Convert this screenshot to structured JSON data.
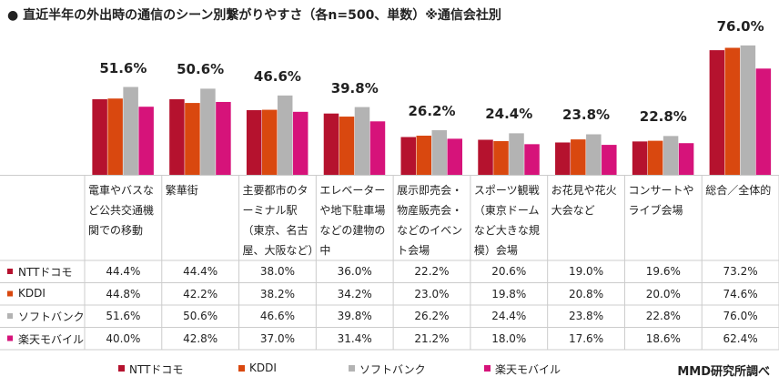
{
  "chart_data": {
    "type": "bar",
    "title": "●  直近半年の外出時の通信のシーン別繋がりやすさ（各n=500、単数）※通信会社別",
    "categories": [
      "電車やバスなど公共交通機関での移動",
      "繁華街",
      "主要都市のターミナル駅（東京、名古屋、大阪など）",
      "エレベーターや地下駐車場などの建物の中",
      "展示即売会・物産販売会・などのイベント会場",
      "スポーツ観戦（東京ドームなど大きな規模）会場",
      "お花見や花火大会など",
      "コンサートやライブ会場",
      "総合／全体的"
    ],
    "series": [
      {
        "name": "NTTドコモ",
        "color": "#b5122e",
        "values": [
          44.4,
          44.4,
          38.0,
          36.0,
          22.2,
          20.6,
          19.0,
          19.6,
          73.2
        ],
        "value_labels": [
          "44.4%",
          "44.4%",
          "38.0%",
          "36.0%",
          "22.2%",
          "20.6%",
          "19.0%",
          "19.6%",
          "73.2%"
        ]
      },
      {
        "name": "KDDI",
        "color": "#d9480f",
        "values": [
          44.8,
          42.2,
          38.2,
          34.2,
          23.0,
          19.8,
          20.8,
          20.0,
          74.6
        ],
        "value_labels": [
          "44.8%",
          "42.2%",
          "38.2%",
          "34.2%",
          "23.0%",
          "19.8%",
          "20.8%",
          "20.0%",
          "74.6%"
        ]
      },
      {
        "name": "ソフトバンク",
        "color": "#b3b3b3",
        "values": [
          51.6,
          50.6,
          46.6,
          39.8,
          26.2,
          24.4,
          23.8,
          22.8,
          76.0
        ],
        "value_labels": [
          "51.6%",
          "50.6%",
          "46.6%",
          "39.8%",
          "26.2%",
          "24.4%",
          "23.8%",
          "22.8%",
          "76.0%"
        ]
      },
      {
        "name": "楽天モバイル",
        "color": "#d6137a",
        "values": [
          40.0,
          42.8,
          37.0,
          31.4,
          21.2,
          18.0,
          17.6,
          18.6,
          62.4
        ],
        "value_labels": [
          "40.0%",
          "42.8%",
          "37.0%",
          "31.4%",
          "21.2%",
          "18.0%",
          "17.6%",
          "18.6%",
          "62.4%"
        ]
      }
    ],
    "source": "MMD研究所調べ"
  }
}
